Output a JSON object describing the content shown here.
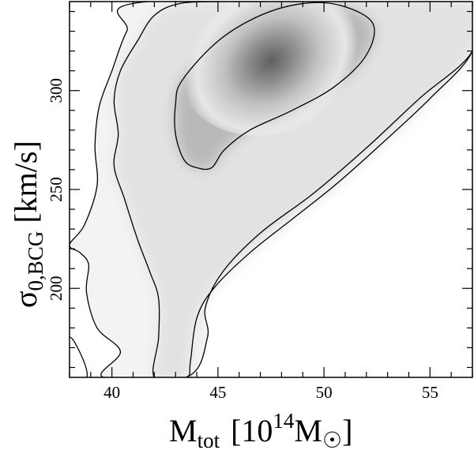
{
  "chart_data": {
    "type": "contour",
    "xlabel": {
      "main": "M",
      "sub": "tot",
      "rest_open": "[10",
      "sup": "14",
      "rest_mid": "M",
      "rest_close": "]"
    },
    "ylabel": {
      "main": "σ",
      "sub": "0,BCG",
      "rest": "[km/s]"
    },
    "xlim": [
      38,
      57
    ],
    "ylim": [
      155,
      345
    ],
    "xticks_major": [
      40,
      45,
      50,
      55
    ],
    "yticks_major": [
      200,
      250,
      300
    ],
    "xtick_labels": [
      "40",
      "45",
      "50",
      "55"
    ],
    "ytick_labels": [
      "200",
      "250",
      "300"
    ],
    "density_peak": [
      47.5,
      315
    ],
    "contours": [
      {
        "level": "inner",
        "points": [
          [
            43.3,
            305
          ],
          [
            45,
            325
          ],
          [
            47,
            338
          ],
          [
            49,
            344
          ],
          [
            50.8,
            343
          ],
          [
            52.3,
            334
          ],
          [
            52,
            318
          ],
          [
            50.5,
            302
          ],
          [
            48.5,
            290
          ],
          [
            46.5,
            280
          ],
          [
            45.3,
            270
          ],
          [
            44.7,
            261
          ],
          [
            44,
            261
          ],
          [
            43.4,
            265
          ],
          [
            43,
            278
          ],
          [
            43,
            293
          ]
        ]
      },
      {
        "level": "middle",
        "points": [
          [
            41.2,
            325
          ],
          [
            42,
            338
          ],
          [
            43.2,
            344
          ],
          [
            45.2,
            345
          ],
          [
            47,
            345
          ],
          [
            57,
            345
          ],
          [
            57,
            320
          ],
          [
            55,
            296
          ],
          [
            52.5,
            271
          ],
          [
            50.5,
            252
          ],
          [
            48.5,
            235
          ],
          [
            46.5,
            218
          ],
          [
            44.8,
            200
          ],
          [
            44,
            185
          ],
          [
            43.7,
            163
          ],
          [
            43.5,
            155
          ],
          [
            42,
            155
          ],
          [
            42.2,
            175
          ],
          [
            42.2,
            195
          ],
          [
            41.8,
            208
          ],
          [
            41.2,
            225
          ],
          [
            40.6,
            245
          ],
          [
            40.1,
            262
          ],
          [
            40.3,
            278
          ],
          [
            40.1,
            295
          ],
          [
            40.4,
            310
          ]
        ]
      },
      {
        "level": "outer",
        "points": [
          [
            38,
            222
          ],
          [
            38.7,
            232
          ],
          [
            39.3,
            252
          ],
          [
            39.2,
            272
          ],
          [
            39.4,
            292
          ],
          [
            40,
            310
          ],
          [
            40.7,
            330
          ],
          [
            41.7,
            345
          ],
          [
            57,
            345
          ],
          [
            57,
            320
          ],
          [
            54.5,
            296
          ],
          [
            52,
            271
          ],
          [
            49.5,
            248
          ],
          [
            47,
            228
          ],
          [
            45.2,
            208
          ],
          [
            44.4,
            190
          ],
          [
            44.5,
            175
          ],
          [
            43.5,
            155
          ],
          [
            39.6,
            155
          ],
          [
            40.4,
            168
          ],
          [
            39.3,
            180
          ],
          [
            38.8,
            198
          ],
          [
            38.9,
            212
          ],
          [
            38.5,
            218
          ]
        ]
      },
      {
        "level": "corner",
        "points": [
          [
            38,
            175
          ],
          [
            38.6,
            165
          ],
          [
            38.8,
            155
          ],
          [
            38,
            155
          ]
        ]
      }
    ]
  }
}
